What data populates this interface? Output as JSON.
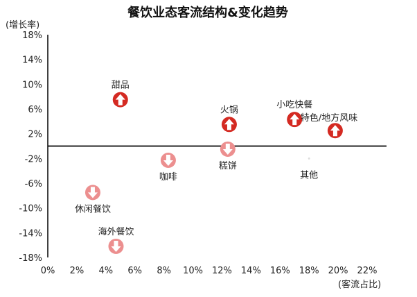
{
  "chart_data": {
    "type": "scatter",
    "title": "餐饮业态客流结构&变化趋势",
    "xlabel": "(客流占比)",
    "ylabel": "(增长率)",
    "x_unit": "%",
    "y_unit": "%",
    "xlim": [
      0,
      22
    ],
    "ylim": [
      -18,
      18
    ],
    "x_ticks": [
      "0%",
      "2%",
      "4%",
      "6%",
      "8%",
      "10%",
      "12%",
      "14%",
      "16%",
      "18%",
      "20%",
      "22%"
    ],
    "y_ticks": [
      "18%",
      "14%",
      "10%",
      "6%",
      "2%",
      "-2%",
      "-6%",
      "-10%",
      "-14%",
      "-18%"
    ],
    "zero_line_y": 0,
    "grid": false,
    "colors": {
      "up": "#d42a22",
      "down": "#ec8f8f",
      "zero_line": "#000000",
      "axis": "#000000"
    },
    "points": [
      {
        "name": "甜品",
        "x": 5.0,
        "y": 7.5,
        "trend": "up",
        "label_pos": "above"
      },
      {
        "name": "火锅",
        "x": 12.5,
        "y": 3.5,
        "trend": "up",
        "label_pos": "above"
      },
      {
        "name": "小吃快餐",
        "x": 17.0,
        "y": 4.3,
        "trend": "up",
        "label_pos": "above"
      },
      {
        "name": "特色/地方风味",
        "x": 19.8,
        "y": 2.5,
        "trend": "up",
        "label_pos": "above-right"
      },
      {
        "name": "糕饼",
        "x": 12.4,
        "y": -0.5,
        "trend": "down",
        "label_pos": "below"
      },
      {
        "name": "咖啡",
        "x": 8.3,
        "y": -2.3,
        "trend": "down",
        "label_pos": "below"
      },
      {
        "name": "其他",
        "x": 18.0,
        "y": -2.0,
        "trend": "none",
        "label_pos": "below"
      },
      {
        "name": "休闲餐饮",
        "x": 3.1,
        "y": -7.5,
        "trend": "down",
        "label_pos": "below"
      },
      {
        "name": "海外餐饮",
        "x": 4.7,
        "y": -16.2,
        "trend": "down",
        "label_pos": "above"
      }
    ]
  }
}
